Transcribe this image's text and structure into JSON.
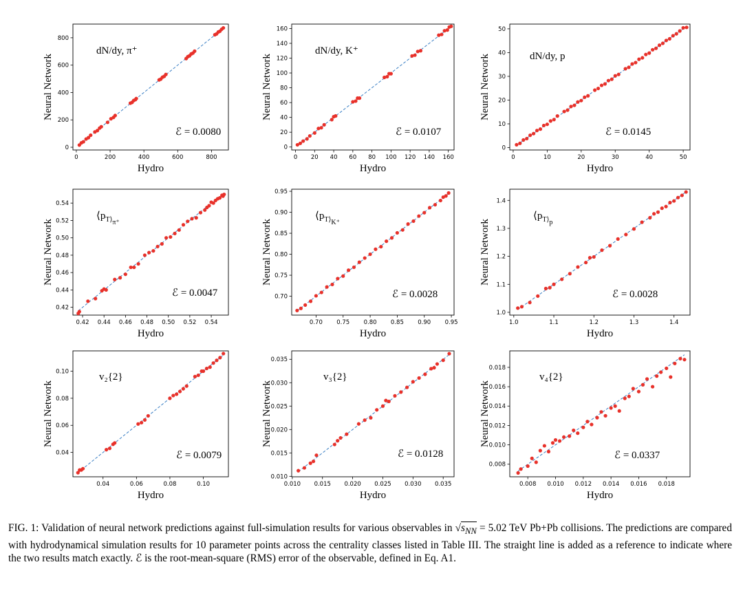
{
  "caption": {
    "fig_label": "FIG. 1:",
    "part1": "Validation of neural network predictions against full-simulation results for various observables in",
    "sqrt_symbol": "√",
    "sqrt_var": "s",
    "sqrt_sub": "NN",
    "part2": "= 5.02 TeV Pb+Pb collisions. The predictions are compared with hydrodynamical simulation results for 10 parameter points across the centrality classes listed in Table III. The straight line is added as a reference to indicate where the two results match exactly.",
    "err_symbol": "ℰ",
    "part3": "is the root-mean-square (RMS) error of the observable, defined in Eq. A1."
  },
  "colors": {
    "points": "#e8312a",
    "reference_line": "#3a7fc4",
    "axes": "#000000"
  },
  "chart_data": [
    {
      "type": "scatter",
      "panel_label": "dN/dy, π⁺",
      "error_text": "ℰ = 0.0080",
      "xlabel": "Hydro",
      "ylabel": "Neural Network",
      "xlim": [
        -20,
        900
      ],
      "ylim": [
        -20,
        900
      ],
      "xticks": [
        0,
        200,
        400,
        600,
        800
      ],
      "yticks": [
        0,
        200,
        400,
        600,
        800
      ],
      "tick_labels": [
        "0",
        "200",
        "400",
        "600",
        "800"
      ],
      "reference_line": "y = x",
      "x": [
        18,
        30,
        42,
        58,
        72,
        85,
        110,
        125,
        138,
        148,
        185,
        205,
        220,
        230,
        320,
        330,
        340,
        350,
        355,
        490,
        500,
        510,
        520,
        530,
        650,
        660,
        670,
        680,
        690,
        700,
        820,
        830,
        840,
        850,
        860,
        870
      ],
      "y": [
        16,
        32,
        40,
        60,
        70,
        88,
        112,
        122,
        140,
        150,
        182,
        208,
        218,
        232,
        322,
        328,
        342,
        348,
        356,
        492,
        498,
        512,
        518,
        532,
        648,
        662,
        668,
        682,
        688,
        702,
        822,
        828,
        842,
        848,
        862,
        872
      ]
    },
    {
      "type": "scatter",
      "panel_label": "dN/dy, K⁺",
      "error_text": "ℰ = 0.0107",
      "xlabel": "Hydro",
      "ylabel": "Neural Network",
      "xlim": [
        -4,
        166
      ],
      "ylim": [
        -4,
        166
      ],
      "xticks": [
        0,
        20,
        40,
        60,
        80,
        100,
        120,
        140,
        160
      ],
      "yticks": [
        0,
        20,
        40,
        60,
        80,
        100,
        120,
        140,
        160
      ],
      "tick_labels": [
        "0",
        "20",
        "40",
        "60",
        "80",
        "100",
        "120",
        "140",
        "160"
      ],
      "reference_line": "y = x",
      "x": [
        2,
        5,
        8,
        12,
        15,
        20,
        24,
        27,
        30,
        38,
        40,
        42,
        60,
        63,
        65,
        67,
        93,
        96,
        98,
        100,
        122,
        125,
        128,
        131,
        150,
        153,
        156,
        159,
        161,
        163
      ],
      "y": [
        3,
        5,
        8,
        11,
        15,
        19,
        25,
        26,
        30,
        37,
        41,
        42,
        61,
        62,
        66,
        66,
        94,
        95,
        99,
        99,
        123,
        124,
        129,
        130,
        151,
        152,
        157,
        158,
        162,
        163
      ]
    },
    {
      "type": "scatter",
      "panel_label": "dN/dy, p",
      "error_text": "ℰ = 0.0145",
      "xlabel": "Hydro",
      "ylabel": "Neural Network",
      "xlim": [
        -1,
        52
      ],
      "ylim": [
        -1,
        52
      ],
      "xticks": [
        0,
        10,
        20,
        30,
        40,
        50
      ],
      "yticks": [
        0,
        10,
        20,
        30,
        40,
        50
      ],
      "tick_labels": [
        "0",
        "10",
        "20",
        "30",
        "40",
        "50"
      ],
      "reference_line": "y = x",
      "x": [
        1,
        2,
        3,
        4,
        5,
        6,
        7,
        8,
        9,
        10,
        11,
        12,
        13,
        15,
        16,
        17,
        18,
        19,
        20,
        21,
        22,
        24,
        25,
        26,
        27,
        28,
        29,
        30,
        31,
        33,
        34,
        35,
        36,
        37,
        38,
        39,
        40,
        41,
        42,
        43,
        44,
        45,
        46,
        47,
        48,
        49,
        50,
        51
      ],
      "y": [
        1.2,
        1.8,
        3.2,
        3.8,
        5.2,
        5.9,
        7.2,
        7.8,
        9.3,
        9.8,
        11.2,
        11.8,
        13.3,
        15.2,
        15.8,
        17.3,
        17.8,
        19.2,
        19.8,
        21.2,
        21.8,
        24.2,
        24.9,
        26.2,
        26.8,
        28.2,
        28.8,
        30.2,
        30.8,
        33.2,
        33.8,
        35.2,
        35.8,
        37.2,
        37.8,
        39.2,
        39.8,
        41.2,
        41.8,
        43.1,
        43.9,
        45.1,
        45.8,
        47.1,
        47.9,
        49.1,
        50.4,
        50.6
      ]
    },
    {
      "type": "scatter",
      "panel_label": "⟨p_T⟩_π⁺",
      "error_text": "ℰ = 0.0047",
      "xlabel": "Hydro",
      "ylabel": "Neural Network",
      "xlim": [
        0.411,
        0.556
      ],
      "ylim": [
        0.411,
        0.556
      ],
      "xticks": [
        0.42,
        0.44,
        0.46,
        0.48,
        0.5,
        0.52,
        0.54
      ],
      "yticks": [
        0.42,
        0.44,
        0.46,
        0.48,
        0.5,
        0.52,
        0.54
      ],
      "tick_labels": [
        "0.42",
        "0.44",
        "0.46",
        "0.48",
        "0.50",
        "0.52",
        "0.54"
      ],
      "reference_line": "y = x",
      "x": [
        0.416,
        0.417,
        0.425,
        0.432,
        0.438,
        0.44,
        0.442,
        0.45,
        0.455,
        0.46,
        0.465,
        0.468,
        0.472,
        0.478,
        0.482,
        0.486,
        0.49,
        0.494,
        0.498,
        0.502,
        0.506,
        0.51,
        0.514,
        0.518,
        0.522,
        0.526,
        0.53,
        0.534,
        0.536,
        0.538,
        0.54,
        0.542,
        0.544,
        0.546,
        0.548,
        0.55,
        0.551,
        0.552
      ],
      "y": [
        0.413,
        0.415,
        0.427,
        0.43,
        0.439,
        0.441,
        0.44,
        0.452,
        0.454,
        0.458,
        0.466,
        0.466,
        0.47,
        0.48,
        0.483,
        0.485,
        0.49,
        0.493,
        0.5,
        0.501,
        0.505,
        0.509,
        0.515,
        0.519,
        0.522,
        0.523,
        0.529,
        0.532,
        0.535,
        0.537,
        0.541,
        0.54,
        0.543,
        0.545,
        0.546,
        0.549,
        0.548,
        0.55
      ]
    },
    {
      "type": "scatter",
      "panel_label": "⟨p_T⟩_K⁺",
      "error_text": "ℰ = 0.0028",
      "xlabel": "Hydro",
      "ylabel": "Neural Network",
      "xlim": [
        0.655,
        0.955
      ],
      "ylim": [
        0.655,
        0.955
      ],
      "xticks": [
        0.7,
        0.75,
        0.8,
        0.85,
        0.9,
        0.95
      ],
      "yticks": [
        0.7,
        0.75,
        0.8,
        0.85,
        0.9,
        0.95
      ],
      "tick_labels": [
        "0.70",
        "0.75",
        "0.80",
        "0.85",
        "0.90",
        "0.95"
      ],
      "reference_line": "y = x",
      "x": [
        0.665,
        0.672,
        0.68,
        0.69,
        0.7,
        0.71,
        0.72,
        0.73,
        0.74,
        0.75,
        0.76,
        0.77,
        0.78,
        0.79,
        0.8,
        0.81,
        0.82,
        0.83,
        0.84,
        0.85,
        0.86,
        0.87,
        0.88,
        0.89,
        0.9,
        0.91,
        0.92,
        0.93,
        0.935,
        0.94,
        0.945
      ],
      "y": [
        0.666,
        0.671,
        0.679,
        0.688,
        0.701,
        0.709,
        0.722,
        0.728,
        0.742,
        0.748,
        0.762,
        0.769,
        0.781,
        0.791,
        0.8,
        0.812,
        0.818,
        0.831,
        0.839,
        0.851,
        0.858,
        0.872,
        0.879,
        0.891,
        0.899,
        0.911,
        0.918,
        0.928,
        0.936,
        0.939,
        0.946
      ]
    },
    {
      "type": "scatter",
      "panel_label": "⟨p_T⟩_p",
      "error_text": "ℰ = 0.0028",
      "xlabel": "Hydro",
      "ylabel": "Neural Network",
      "xlim": [
        0.99,
        1.44
      ],
      "ylim": [
        0.99,
        1.44
      ],
      "xticks": [
        1.0,
        1.1,
        1.2,
        1.3,
        1.4
      ],
      "yticks": [
        1.0,
        1.1,
        1.2,
        1.3,
        1.4
      ],
      "tick_labels": [
        "1.0",
        "1.1",
        "1.2",
        "1.3",
        "1.4"
      ],
      "reference_line": "y = x",
      "x": [
        1.01,
        1.02,
        1.04,
        1.06,
        1.08,
        1.09,
        1.1,
        1.12,
        1.14,
        1.16,
        1.18,
        1.19,
        1.2,
        1.22,
        1.24,
        1.26,
        1.28,
        1.3,
        1.32,
        1.34,
        1.35,
        1.36,
        1.37,
        1.38,
        1.39,
        1.4,
        1.41,
        1.42,
        1.43
      ],
      "y": [
        1.015,
        1.02,
        1.035,
        1.058,
        1.085,
        1.088,
        1.1,
        1.118,
        1.138,
        1.162,
        1.178,
        1.195,
        1.198,
        1.222,
        1.238,
        1.262,
        1.278,
        1.298,
        1.322,
        1.338,
        1.352,
        1.358,
        1.372,
        1.378,
        1.392,
        1.398,
        1.41,
        1.418,
        1.43
      ]
    },
    {
      "type": "scatter",
      "panel_label": "v₂{2}",
      "error_text": "ℰ = 0.0079",
      "xlabel": "Hydro",
      "ylabel": "Neural Network",
      "xlim": [
        0.022,
        0.115
      ],
      "ylim": [
        0.022,
        0.115
      ],
      "xticks": [
        0.04,
        0.06,
        0.08,
        0.1
      ],
      "yticks": [
        0.04,
        0.06,
        0.08,
        0.1
      ],
      "tick_labels": [
        "0.04",
        "0.06",
        "0.08",
        "0.10"
      ],
      "reference_line": "y = x",
      "x": [
        0.025,
        0.026,
        0.027,
        0.028,
        0.042,
        0.044,
        0.046,
        0.047,
        0.061,
        0.063,
        0.065,
        0.067,
        0.08,
        0.082,
        0.084,
        0.086,
        0.088,
        0.09,
        0.095,
        0.097,
        0.099,
        0.1,
        0.102,
        0.104,
        0.106,
        0.108,
        0.11,
        0.112
      ],
      "y": [
        0.025,
        0.027,
        0.027,
        0.028,
        0.042,
        0.043,
        0.046,
        0.047,
        0.061,
        0.062,
        0.064,
        0.067,
        0.08,
        0.082,
        0.083,
        0.085,
        0.087,
        0.089,
        0.096,
        0.097,
        0.1,
        0.1,
        0.102,
        0.103,
        0.106,
        0.108,
        0.11,
        0.113
      ]
    },
    {
      "type": "scatter",
      "panel_label": "v₃{2}",
      "error_text": "ℰ = 0.0128",
      "xlabel": "Hydro",
      "ylabel": "Neural Network",
      "xlim": [
        0.0099,
        0.0368
      ],
      "ylim": [
        0.0099,
        0.0368
      ],
      "xticks": [
        0.01,
        0.015,
        0.02,
        0.025,
        0.03,
        0.035
      ],
      "yticks": [
        0.01,
        0.015,
        0.02,
        0.025,
        0.03,
        0.035
      ],
      "tick_labels": [
        "0.010",
        "0.015",
        "0.020",
        "0.025",
        "0.030",
        "0.035"
      ],
      "reference_line": "y = x",
      "x": [
        0.011,
        0.012,
        0.013,
        0.0135,
        0.014,
        0.017,
        0.0175,
        0.018,
        0.019,
        0.021,
        0.022,
        0.023,
        0.024,
        0.025,
        0.0255,
        0.026,
        0.027,
        0.028,
        0.029,
        0.03,
        0.031,
        0.032,
        0.033,
        0.0335,
        0.034,
        0.035,
        0.036
      ],
      "y": [
        0.0112,
        0.0118,
        0.0128,
        0.0132,
        0.0145,
        0.0168,
        0.0176,
        0.0182,
        0.019,
        0.0212,
        0.022,
        0.0225,
        0.0242,
        0.025,
        0.0262,
        0.026,
        0.0272,
        0.028,
        0.029,
        0.0302,
        0.031,
        0.0318,
        0.033,
        0.0332,
        0.034,
        0.0348,
        0.0362
      ]
    },
    {
      "type": "scatter",
      "panel_label": "v₄{2}",
      "error_text": "ℰ = 0.0337",
      "xlabel": "Hydro",
      "ylabel": "Neural Network",
      "xlim": [
        0.0067,
        0.0197
      ],
      "ylim": [
        0.0067,
        0.0197
      ],
      "xticks": [
        0.008,
        0.01,
        0.012,
        0.014,
        0.016,
        0.018
      ],
      "yticks": [
        0.008,
        0.01,
        0.012,
        0.014,
        0.016,
        0.018
      ],
      "tick_labels": [
        "0.008",
        "0.010",
        "0.012",
        "0.014",
        "0.016",
        "0.018"
      ],
      "reference_line": "y = x",
      "x": [
        0.0073,
        0.0075,
        0.008,
        0.0083,
        0.0086,
        0.0089,
        0.0092,
        0.0095,
        0.0098,
        0.01,
        0.0103,
        0.0106,
        0.011,
        0.0113,
        0.0116,
        0.012,
        0.0123,
        0.0126,
        0.013,
        0.0133,
        0.0136,
        0.014,
        0.0143,
        0.0146,
        0.015,
        0.0153,
        0.0156,
        0.016,
        0.0163,
        0.0166,
        0.017,
        0.0173,
        0.0176,
        0.018,
        0.0183,
        0.0186,
        0.019,
        0.0193
      ],
      "y": [
        0.0071,
        0.0075,
        0.0078,
        0.0086,
        0.0082,
        0.0094,
        0.0099,
        0.0093,
        0.0102,
        0.0105,
        0.0104,
        0.0108,
        0.0109,
        0.0115,
        0.0112,
        0.0118,
        0.0124,
        0.0121,
        0.0128,
        0.0134,
        0.013,
        0.0138,
        0.014,
        0.0135,
        0.0148,
        0.015,
        0.0158,
        0.0155,
        0.0162,
        0.0168,
        0.016,
        0.0171,
        0.0175,
        0.0179,
        0.017,
        0.0184,
        0.0189,
        0.0188
      ]
    }
  ]
}
